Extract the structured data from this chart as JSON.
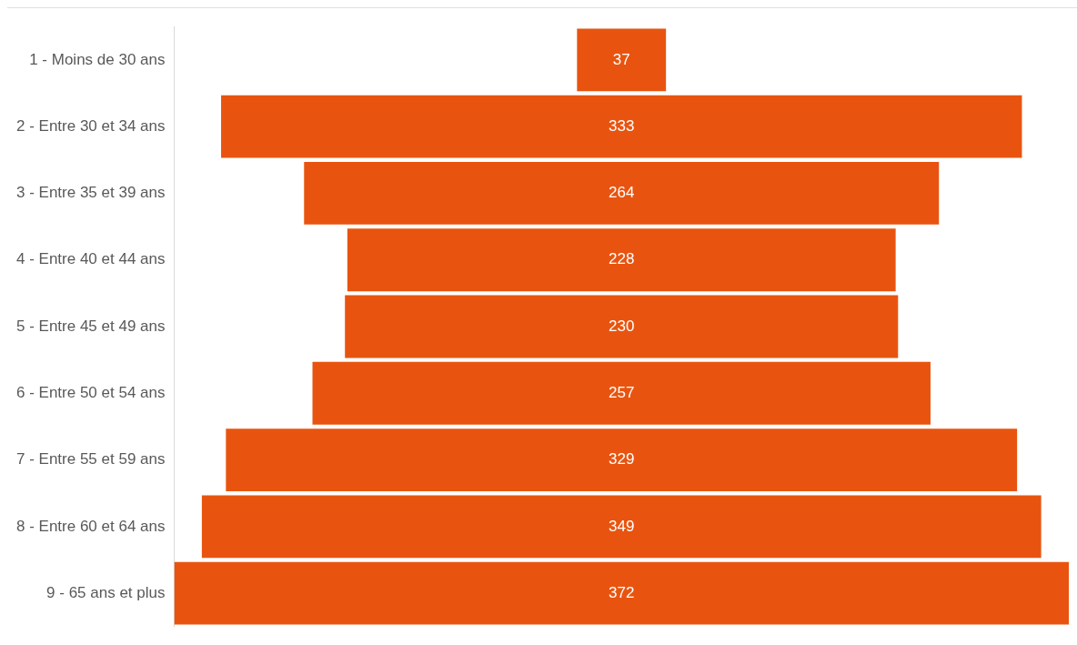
{
  "chart_data": {
    "type": "other",
    "categories": [
      "1 - Moins de 30 ans",
      "2 - Entre 30 et 34 ans",
      "3 - Entre 35 et 39 ans",
      "4 - Entre 40 et 44 ans",
      "5 - Entre 45 et 49 ans",
      "6 - Entre 50 et 54 ans",
      "7 - Entre 55 et 59 ans",
      "8 - Entre 60 et 64 ans",
      "9 - 65 ans et plus"
    ],
    "values": [
      37,
      333,
      264,
      228,
      230,
      257,
      329,
      349,
      372
    ],
    "color": "#e8540f",
    "data_labels": true
  }
}
